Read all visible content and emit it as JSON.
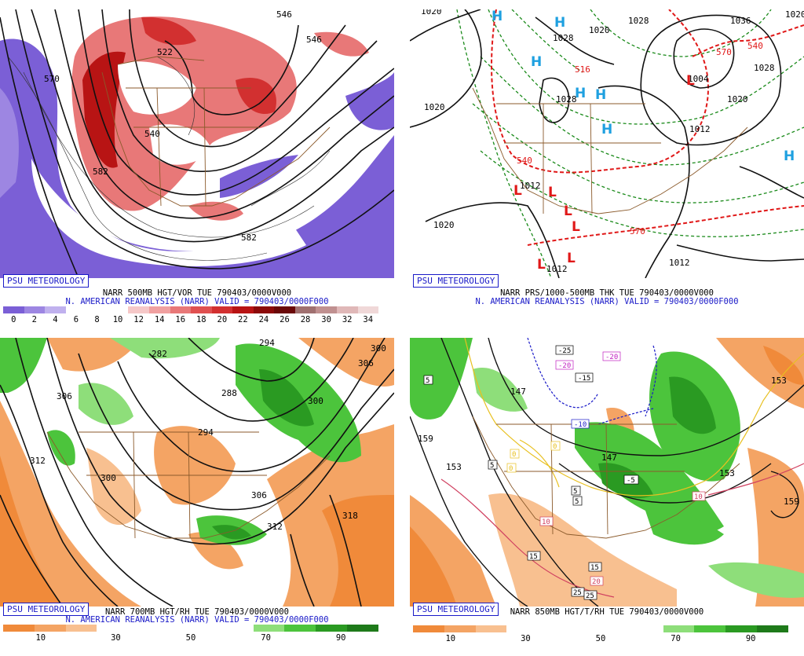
{
  "badge": "PSU METEOROLOGY",
  "panels": [
    {
      "line1": "NARR 500MB HGT/VOR TUE 790403/0000V000",
      "line2": "N. AMERICAN REANALYSIS (NARR) VALID = 790403/0000F000",
      "colorbar": {
        "colors": [
          "#7b5fd6",
          "#9d86e2",
          "#c0b1ee",
          "#ffffff",
          "#ffffff",
          "#ffffff",
          "#f6c8c8",
          "#f0a0a0",
          "#e87878",
          "#e05050",
          "#d23030",
          "#b81414",
          "#8c0a0a",
          "#6a0808",
          "#a07070",
          "#c09090",
          "#e0b8b8",
          "#f0d8d8"
        ],
        "labels": [
          "0",
          "2",
          "4",
          "6",
          "8",
          "10",
          "12",
          "14",
          "16",
          "18",
          "20",
          "22",
          "24",
          "26",
          "28",
          "30",
          "32",
          "34"
        ]
      },
      "contour_labels": [
        "546",
        "522",
        "570",
        "540",
        "546",
        "582",
        "582"
      ]
    },
    {
      "line1": "NARR PRS/1000-500MB THK TUE 790403/0000V000",
      "line2": "N. AMERICAN REANALYSIS (NARR) VALID = 790403/0000F000",
      "contour_labels": [
        "1020",
        "1028",
        "1020",
        "1028",
        "1036",
        "1028",
        "1020",
        "1028",
        "1004",
        "1020",
        "1012",
        "1012",
        "1020",
        "1012",
        "1012",
        "1020",
        "540",
        "570",
        "570",
        "516",
        "540"
      ],
      "highs": [
        "H",
        "H",
        "H",
        "H",
        "H",
        "H",
        "H"
      ],
      "lows": [
        "L",
        "L",
        "L",
        "L",
        "L",
        "L",
        "L"
      ]
    },
    {
      "line1": "NARR 700MB HGT/RH TUE 790403/0000V000",
      "line2": "N. AMERICAN REANALYSIS (NARR) VALID = 790403/0000F000",
      "colorbar": {
        "colors": [
          "#f08a3a",
          "#f4a464",
          "#f8c090",
          "#ffffff",
          "#ffffff",
          "#ffffff",
          "#ffffff",
          "#ffffff",
          "#8ede7a",
          "#4cc43c",
          "#2a9a22",
          "#1e7a1a"
        ],
        "labels": [
          "10",
          "30",
          "50",
          "70",
          "90"
        ]
      },
      "contour_labels": [
        "282",
        "294",
        "300",
        "306",
        "306",
        "288",
        "294",
        "300",
        "312",
        "300",
        "306",
        "312",
        "318"
      ]
    },
    {
      "line1": "NARR 850MB HGT/T/RH TUE 790403/0000V000",
      "colorbar": {
        "colors": [
          "#f08a3a",
          "#f4a464",
          "#f8c090",
          "#ffffff",
          "#ffffff",
          "#ffffff",
          "#ffffff",
          "#ffffff",
          "#8ede7a",
          "#4cc43c",
          "#2a9a22",
          "#1e7a1a"
        ],
        "labels": [
          "10",
          "30",
          "50",
          "70",
          "90"
        ]
      },
      "contour_labels": [
        "147",
        "153",
        "159",
        "153",
        "159",
        "147",
        "153"
      ],
      "temp_labels": [
        "-25",
        "-20",
        "-20",
        "-15",
        "-10",
        "-5",
        "0",
        "0",
        "0",
        "5",
        "5",
        "5",
        "5",
        "10",
        "10",
        "15",
        "15",
        "20",
        "25",
        "25"
      ]
    }
  ]
}
